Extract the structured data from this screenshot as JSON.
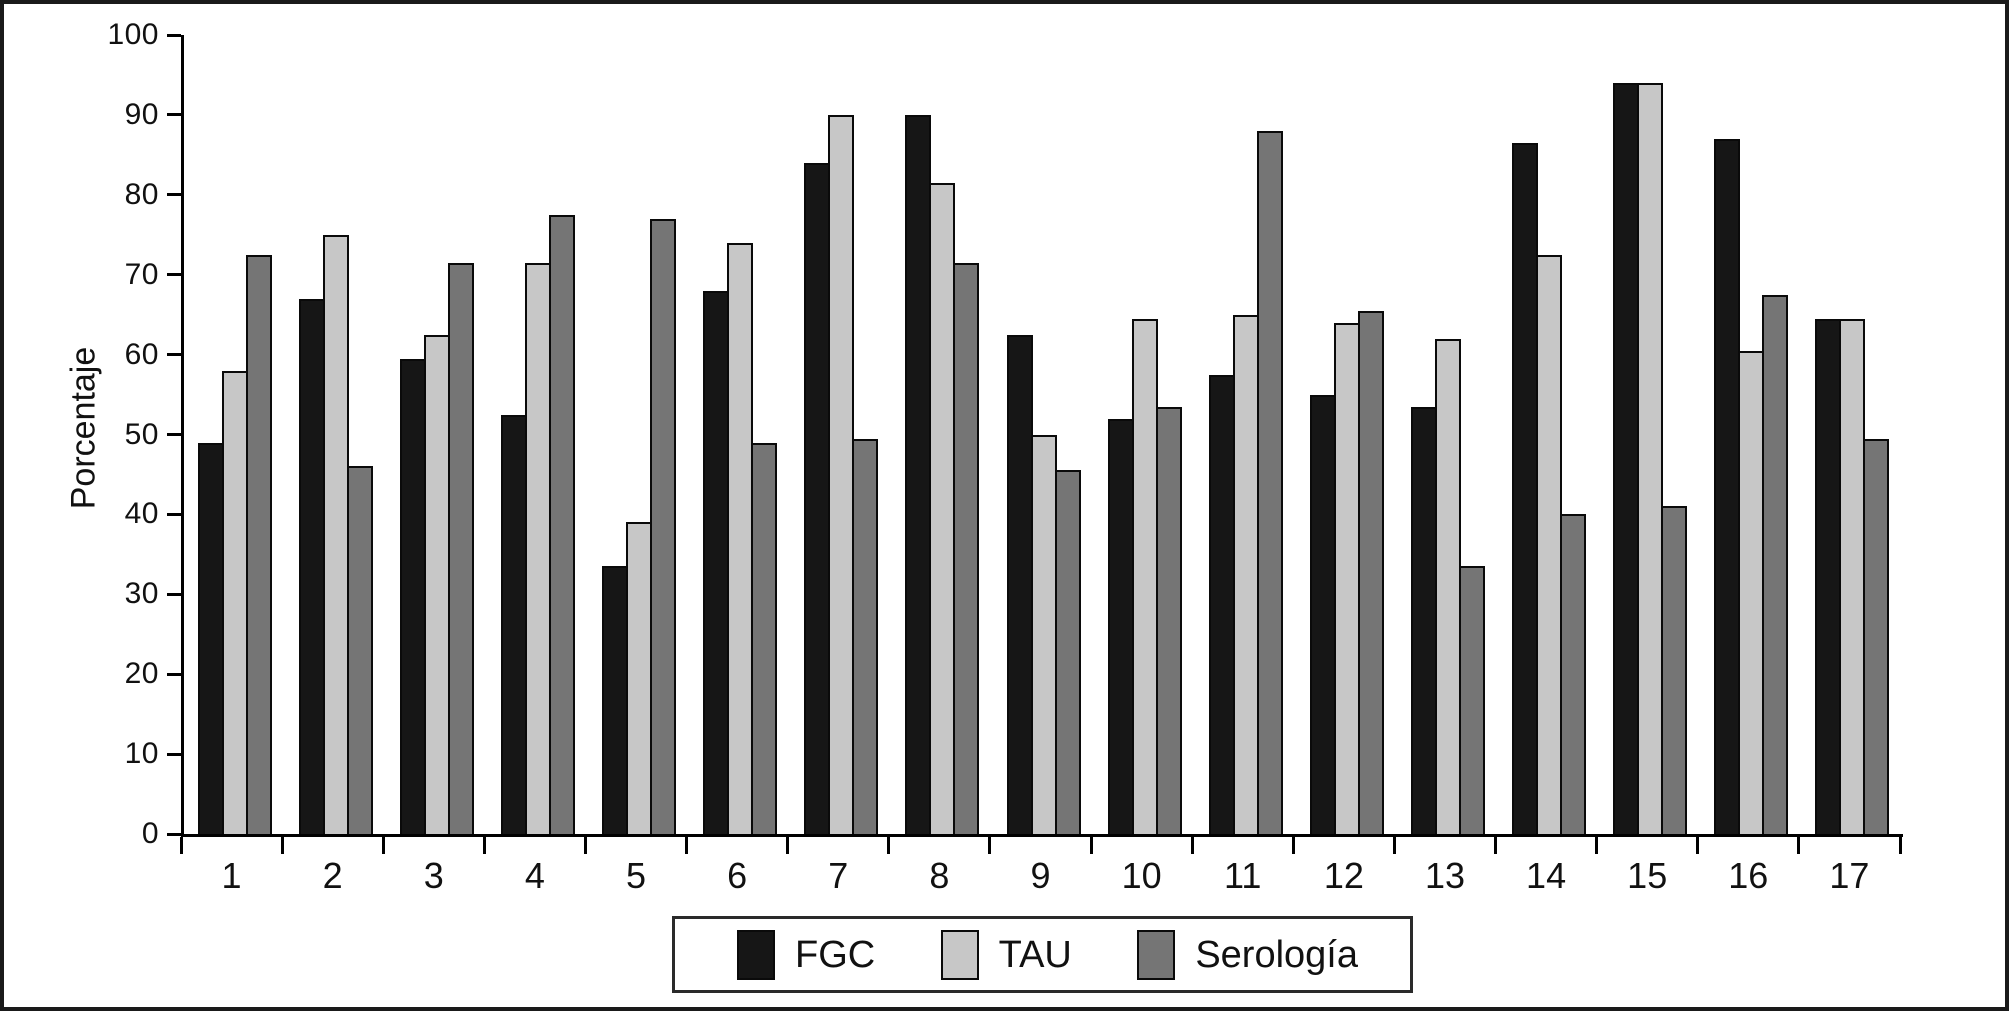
{
  "chart_data": {
    "type": "bar",
    "title": "",
    "xlabel": "",
    "ylabel": "Porcentaje",
    "ylim": [
      0,
      100
    ],
    "yticks": [
      0,
      10,
      20,
      30,
      40,
      50,
      60,
      70,
      80,
      90,
      100
    ],
    "grid": false,
    "legend_position": "bottom-center",
    "categories": [
      "1",
      "2",
      "3",
      "4",
      "5",
      "6",
      "7",
      "8",
      "9",
      "10",
      "11",
      "12",
      "13",
      "14",
      "15",
      "16",
      "17"
    ],
    "series": [
      {
        "name": "FGC",
        "color": "#161616",
        "values": [
          49,
          67,
          59.5,
          52.5,
          33.5,
          68,
          84,
          90,
          62.5,
          52,
          57.5,
          55,
          53.5,
          86.5,
          94,
          87,
          64.5
        ]
      },
      {
        "name": "TAU",
        "color": "#c7c7c7",
        "values": [
          58,
          75,
          62.5,
          71.5,
          39,
          74,
          90,
          81.5,
          50,
          64.5,
          65,
          64,
          62,
          72.5,
          94,
          60.5,
          64.5
        ]
      },
      {
        "name": "Serología",
        "color": "#757575",
        "values": [
          72.5,
          46,
          71.5,
          77.5,
          77,
          49,
          49.5,
          71.5,
          45.5,
          53.5,
          88,
          65.5,
          33.5,
          40,
          41,
          67.5,
          49.5
        ]
      }
    ]
  }
}
